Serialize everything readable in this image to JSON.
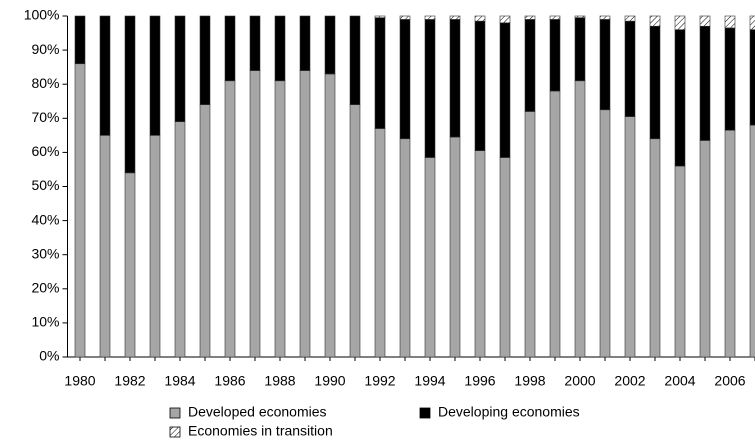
{
  "chart_data": {
    "type": "stacked_bar_100",
    "categories": [
      "1980",
      null,
      "1982",
      null,
      "1984",
      null,
      "1986",
      null,
      "1988",
      null,
      "1990",
      null,
      "1992",
      null,
      "1994",
      null,
      "1996",
      null,
      "1998",
      null,
      "2000",
      null,
      "2002",
      null,
      "2004",
      null,
      "2006",
      null
    ],
    "series": [
      {
        "name": "Developed economies",
        "color": "#a6a6a6",
        "values": [
          86,
          65,
          54,
          65,
          69,
          74,
          81,
          84,
          81,
          84,
          83,
          74,
          67,
          64,
          58.5,
          64.5,
          60.5,
          58.5,
          72,
          78,
          81,
          72.5,
          70.5,
          64,
          56,
          63.5,
          66.5,
          68
        ]
      },
      {
        "name": "Developing economies",
        "color": "#000000",
        "values": [
          14,
          35,
          46,
          35,
          31,
          26,
          19,
          16,
          19,
          16,
          17,
          26,
          32.5,
          35,
          40.5,
          34.5,
          38,
          39.5,
          27,
          21,
          18.5,
          26.5,
          28,
          33,
          40,
          33.5,
          30,
          28
        ]
      },
      {
        "name": "Economies in transition",
        "color": "#ffffff",
        "pattern": "hatch",
        "values": [
          0,
          0,
          0,
          0,
          0,
          0,
          0,
          0,
          0,
          0,
          0,
          0,
          0.5,
          1,
          1,
          1,
          1.5,
          2,
          1,
          1,
          0.5,
          1,
          1.5,
          3,
          4,
          3,
          3.5,
          4
        ]
      }
    ],
    "ylim": [
      0,
      100
    ],
    "yticks": [
      {
        "value": 0,
        "label": "0%"
      },
      {
        "value": 10,
        "label": "10%"
      },
      {
        "value": 20,
        "label": "20%"
      },
      {
        "value": 30,
        "label": "30%"
      },
      {
        "value": 40,
        "label": "40%"
      },
      {
        "value": 50,
        "label": "50%"
      },
      {
        "value": 60,
        "label": "60%"
      },
      {
        "value": 70,
        "label": "70%"
      },
      {
        "value": 80,
        "label": "80%"
      },
      {
        "value": 90,
        "label": "90%"
      },
      {
        "value": 100,
        "label": "100%"
      }
    ]
  }
}
